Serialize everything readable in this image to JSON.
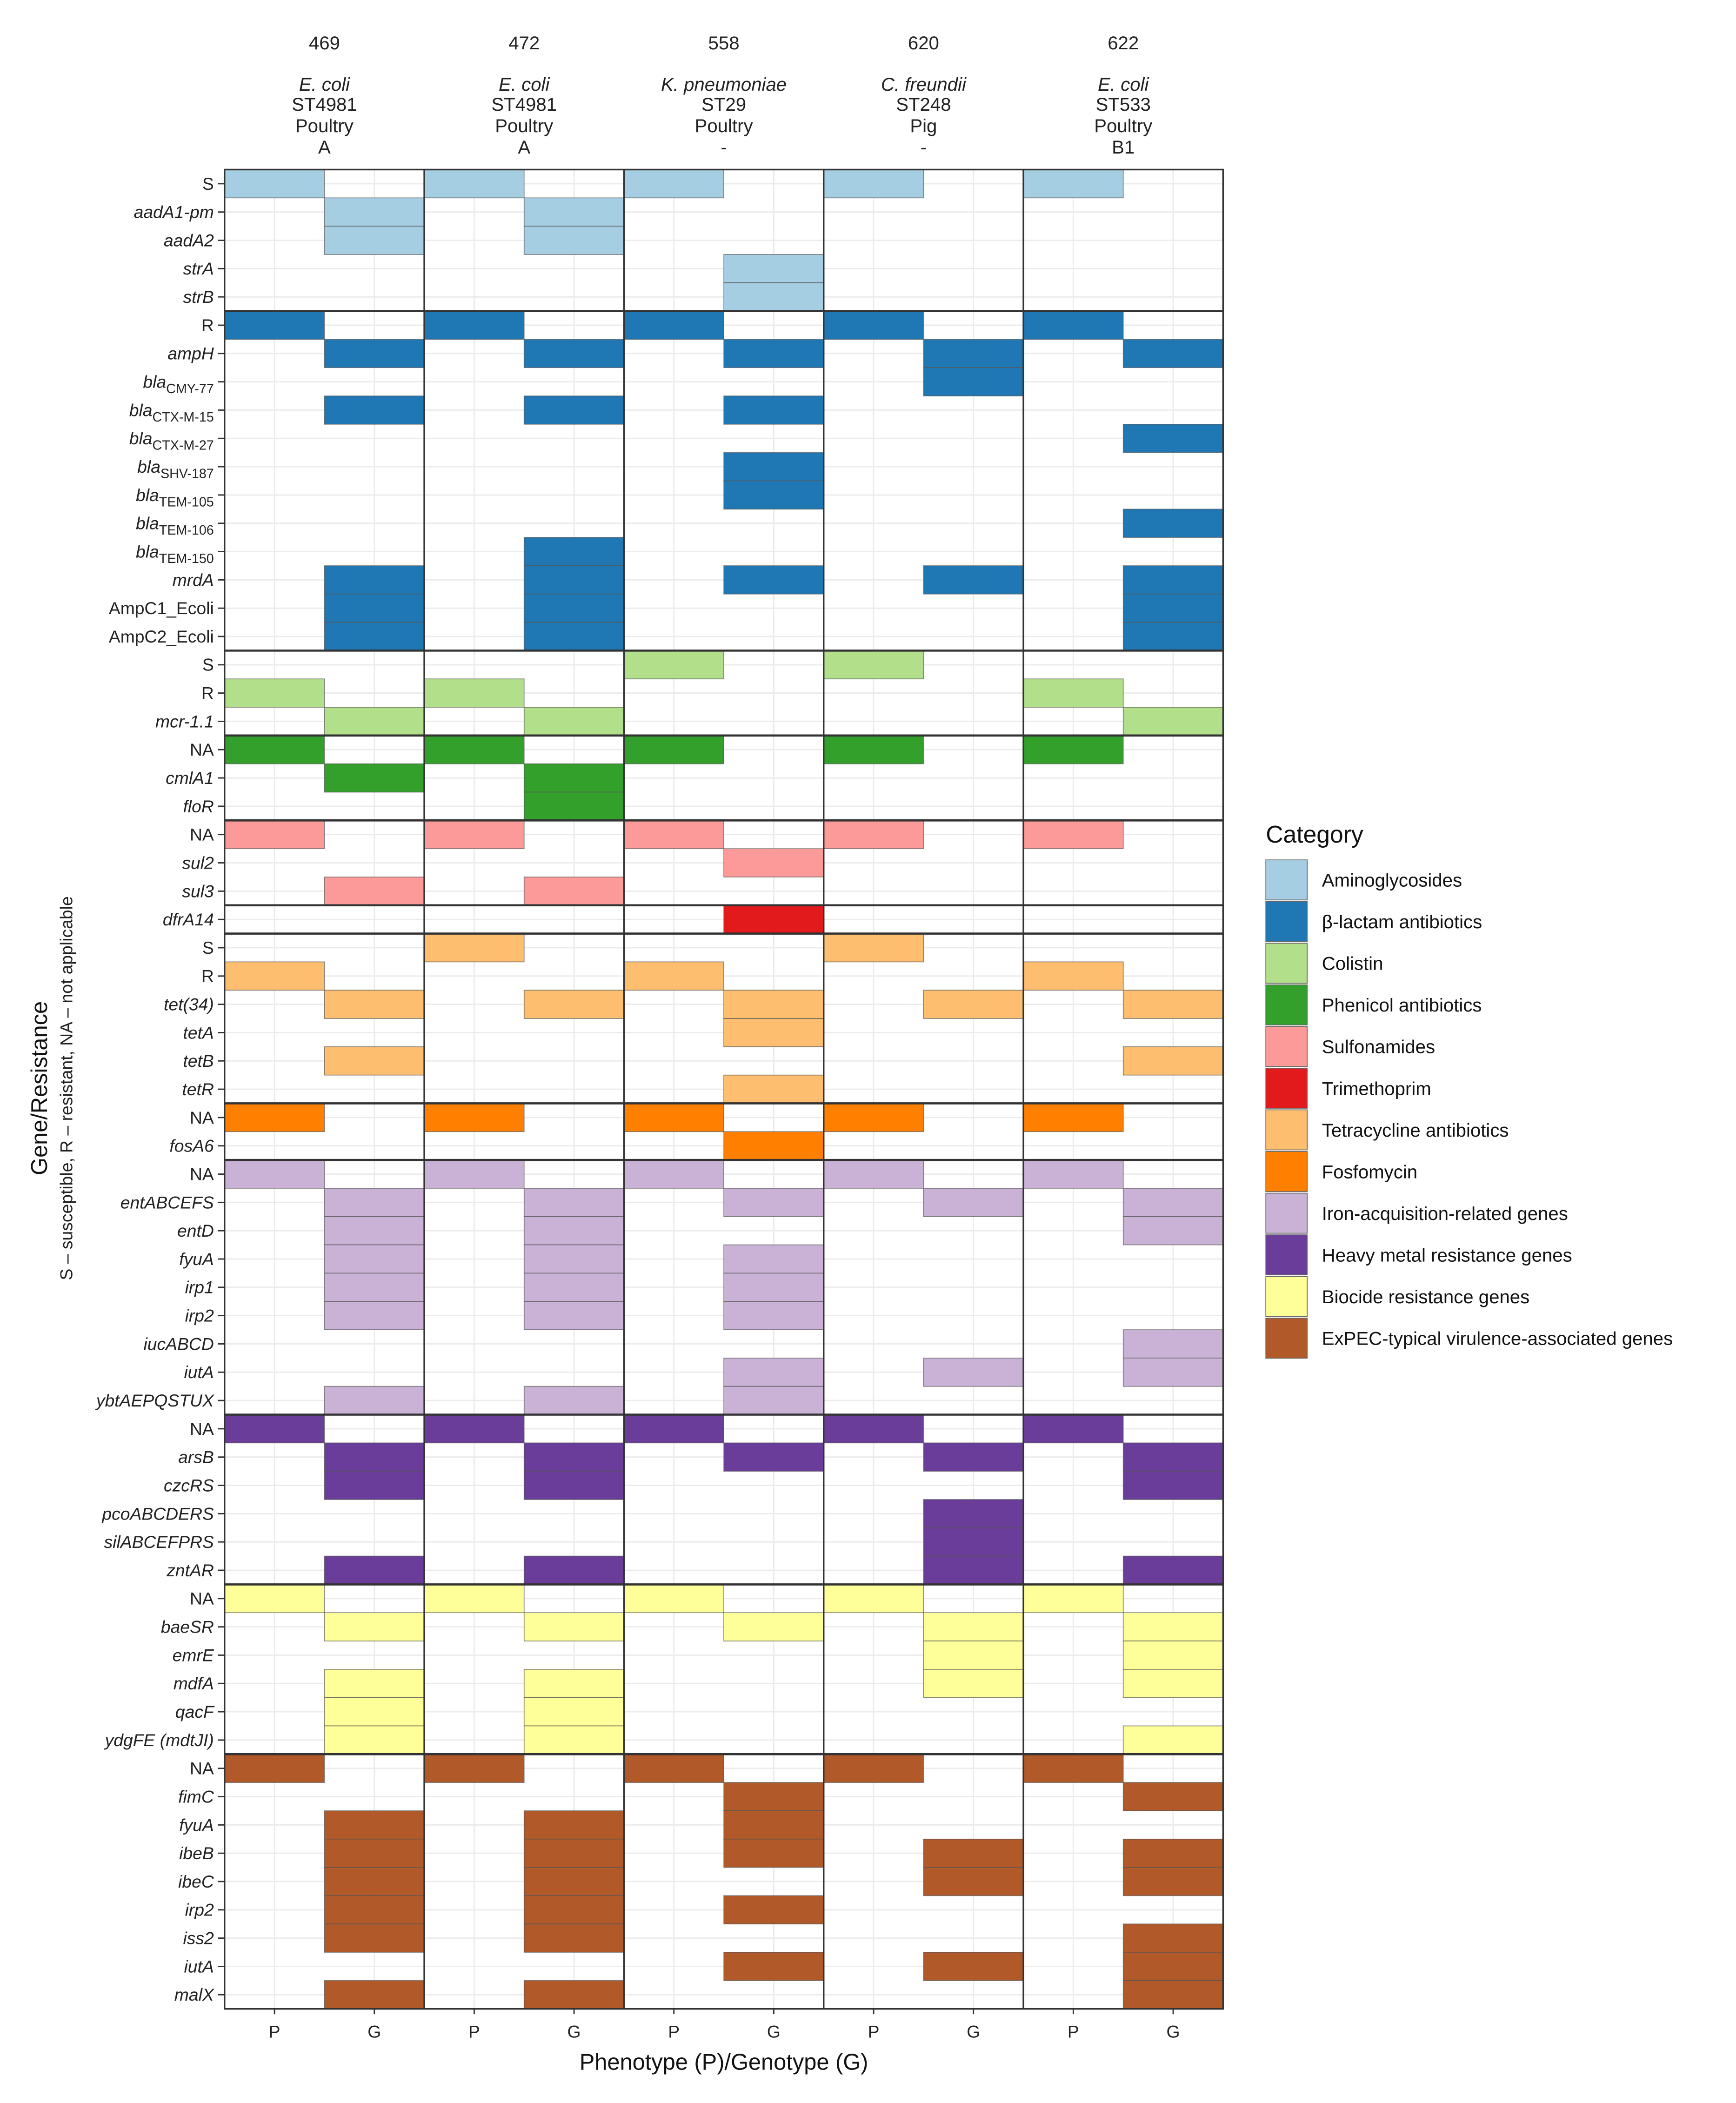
{
  "chart_data": {
    "type": "heatmap",
    "xlabel": "Phenotype (P)/Genotype (G)",
    "ylabel": "Gene/Resistance",
    "ylabel_sub": "S – susceptible, R – resistant, NA – not applicable",
    "x_ticks": [
      "P",
      "G"
    ],
    "legend": {
      "title": "Category",
      "position": "right"
    },
    "isolates": [
      {
        "id": "469",
        "species": "E. coli",
        "st": "ST4981",
        "source": "Poultry",
        "phylogroup": "A"
      },
      {
        "id": "472",
        "species": "E. coli",
        "st": "ST4981",
        "source": "Poultry",
        "phylogroup": "A"
      },
      {
        "id": "558",
        "species": "K. pneumoniae",
        "st": "ST29",
        "source": "Poultry",
        "phylogroup": "-"
      },
      {
        "id": "620",
        "species": "C. freundii",
        "st": "ST248",
        "source": "Pig",
        "phylogroup": "-"
      },
      {
        "id": "622",
        "species": "E. coli",
        "st": "ST533",
        "source": "Poultry",
        "phylogroup": "B1"
      }
    ],
    "groups": [
      {
        "category": "Aminoglycosides",
        "color": "#a6cee3",
        "rows": [
          {
            "label": "S",
            "italic": false,
            "P": [
              "469",
              "472",
              "558",
              "620",
              "622"
            ],
            "G": []
          },
          {
            "label": "aadA1-pm",
            "P": [],
            "G": [
              "469",
              "472"
            ]
          },
          {
            "label": "aadA2",
            "P": [],
            "G": [
              "469",
              "472"
            ]
          },
          {
            "label": "strA",
            "P": [],
            "G": [
              "558"
            ]
          },
          {
            "label": "strB",
            "P": [],
            "G": [
              "558"
            ]
          }
        ]
      },
      {
        "category": "β-lactam antibiotics",
        "color": "#1f78b4",
        "rows": [
          {
            "label": "R",
            "italic": false,
            "P": [
              "469",
              "472",
              "558",
              "620",
              "622"
            ],
            "G": []
          },
          {
            "label": "ampH",
            "P": [],
            "G": [
              "469",
              "472",
              "558",
              "620",
              "622"
            ]
          },
          {
            "label": "bla",
            "sub": "CMY-77",
            "P": [],
            "G": [
              "620"
            ]
          },
          {
            "label": "bla",
            "sub": "CTX-M-15",
            "P": [],
            "G": [
              "469",
              "472",
              "558"
            ]
          },
          {
            "label": "bla",
            "sub": "CTX-M-27",
            "P": [],
            "G": [
              "622"
            ]
          },
          {
            "label": "bla",
            "sub": "SHV-187",
            "P": [],
            "G": [
              "558"
            ]
          },
          {
            "label": "bla",
            "sub": "TEM-105",
            "P": [],
            "G": [
              "558"
            ]
          },
          {
            "label": "bla",
            "sub": "TEM-106",
            "P": [],
            "G": [
              "622"
            ]
          },
          {
            "label": "bla",
            "sub": "TEM-150",
            "P": [],
            "G": [
              "472"
            ]
          },
          {
            "label": "mrdA",
            "P": [],
            "G": [
              "469",
              "472",
              "558",
              "620",
              "622"
            ]
          },
          {
            "label": "AmpC1_Ecoli",
            "italic": false,
            "P": [],
            "G": [
              "469",
              "472",
              "622"
            ]
          },
          {
            "label": "AmpC2_Ecoli",
            "italic": false,
            "P": [],
            "G": [
              "469",
              "472",
              "622"
            ]
          }
        ]
      },
      {
        "category": "Colistin",
        "color": "#b2df8a",
        "rows": [
          {
            "label": "S",
            "italic": false,
            "P": [
              "558",
              "620"
            ],
            "G": []
          },
          {
            "label": "R",
            "italic": false,
            "P": [
              "469",
              "472",
              "622"
            ],
            "G": []
          },
          {
            "label": "mcr-1.1",
            "P": [],
            "G": [
              "469",
              "472",
              "622"
            ]
          }
        ]
      },
      {
        "category": "Phenicol antibiotics",
        "color": "#33a02c",
        "rows": [
          {
            "label": "NA",
            "italic": false,
            "P": [
              "469",
              "472",
              "558",
              "620",
              "622"
            ],
            "G": []
          },
          {
            "label": "cmlA1",
            "P": [],
            "G": [
              "469",
              "472"
            ]
          },
          {
            "label": "floR",
            "P": [],
            "G": [
              "472"
            ]
          }
        ]
      },
      {
        "category": "Sulfonamides",
        "color": "#fb9a99",
        "rows": [
          {
            "label": "NA",
            "italic": false,
            "P": [
              "469",
              "472",
              "558",
              "620",
              "622"
            ],
            "G": []
          },
          {
            "label": "sul2",
            "P": [],
            "G": [
              "558"
            ]
          },
          {
            "label": "sul3",
            "P": [],
            "G": [
              "469",
              "472"
            ]
          }
        ]
      },
      {
        "category": "Trimethoprim",
        "color": "#e31a1c",
        "rows": [
          {
            "label": "dfrA14",
            "P": [],
            "G": [
              "558"
            ]
          }
        ]
      },
      {
        "category": "Tetracycline antibiotics",
        "color": "#fdbf6f",
        "rows": [
          {
            "label": "S",
            "italic": false,
            "P": [
              "472",
              "620"
            ],
            "G": []
          },
          {
            "label": "R",
            "italic": false,
            "P": [
              "469",
              "558",
              "622"
            ],
            "G": []
          },
          {
            "label": "tet(34)",
            "P": [],
            "G": [
              "469",
              "472",
              "558",
              "620",
              "622"
            ]
          },
          {
            "label": "tetA",
            "P": [],
            "G": [
              "558"
            ]
          },
          {
            "label": "tetB",
            "P": [],
            "G": [
              "469",
              "622"
            ]
          },
          {
            "label": "tetR",
            "P": [],
            "G": [
              "558"
            ]
          }
        ]
      },
      {
        "category": "Fosfomycin",
        "color": "#ff7f00",
        "rows": [
          {
            "label": "NA",
            "italic": false,
            "P": [
              "469",
              "472",
              "558",
              "620",
              "622"
            ],
            "G": []
          },
          {
            "label": "fosA6",
            "P": [],
            "G": [
              "558"
            ]
          }
        ]
      },
      {
        "category": "Iron-acquisition-related genes",
        "color": "#cab2d6",
        "rows": [
          {
            "label": "NA",
            "italic": false,
            "P": [
              "469",
              "472",
              "558",
              "620",
              "622"
            ],
            "G": []
          },
          {
            "label": "entABCEFS",
            "P": [],
            "G": [
              "469",
              "472",
              "558",
              "620",
              "622"
            ]
          },
          {
            "label": "entD",
            "P": [],
            "G": [
              "469",
              "472",
              "622"
            ]
          },
          {
            "label": "fyuA",
            "P": [],
            "G": [
              "469",
              "472",
              "558"
            ]
          },
          {
            "label": "irp1",
            "P": [],
            "G": [
              "469",
              "472",
              "558"
            ]
          },
          {
            "label": "irp2",
            "P": [],
            "G": [
              "469",
              "472",
              "558"
            ]
          },
          {
            "label": "iucABCD",
            "P": [],
            "G": [
              "622"
            ]
          },
          {
            "label": "iutA",
            "P": [],
            "G": [
              "558",
              "620",
              "622"
            ]
          },
          {
            "label": "ybtAEPQSTUX",
            "P": [],
            "G": [
              "469",
              "472",
              "558"
            ]
          }
        ]
      },
      {
        "category": "Heavy metal resistance genes",
        "color": "#6a3d9a",
        "rows": [
          {
            "label": "NA",
            "italic": false,
            "P": [
              "469",
              "472",
              "558",
              "620",
              "622"
            ],
            "G": []
          },
          {
            "label": "arsB",
            "P": [],
            "G": [
              "469",
              "472",
              "558",
              "620",
              "622"
            ]
          },
          {
            "label": "czcRS",
            "P": [],
            "G": [
              "469",
              "472",
              "622"
            ]
          },
          {
            "label": "pcoABCDERS",
            "P": [],
            "G": [
              "620"
            ]
          },
          {
            "label": "silABCEFPRS",
            "P": [],
            "G": [
              "620"
            ]
          },
          {
            "label": "zntAR",
            "P": [],
            "G": [
              "469",
              "472",
              "620",
              "622"
            ]
          }
        ]
      },
      {
        "category": "Biocide resistance genes",
        "color": "#ffff99",
        "rows": [
          {
            "label": "NA",
            "italic": false,
            "P": [
              "469",
              "472",
              "558",
              "620",
              "622"
            ],
            "G": []
          },
          {
            "label": "baeSR",
            "P": [],
            "G": [
              "469",
              "472",
              "558",
              "620",
              "622"
            ]
          },
          {
            "label": "emrE",
            "P": [],
            "G": [
              "620",
              "622"
            ]
          },
          {
            "label": "mdfA",
            "P": [],
            "G": [
              "469",
              "472",
              "620",
              "622"
            ]
          },
          {
            "label": "qacF",
            "P": [],
            "G": [
              "469",
              "472"
            ]
          },
          {
            "label": "ydgFE (mdtJI)",
            "P": [],
            "G": [
              "469",
              "472",
              "622"
            ]
          }
        ]
      },
      {
        "category": "ExPEC-typical virulence-associated genes",
        "color": "#b15928",
        "rows": [
          {
            "label": "NA",
            "italic": false,
            "P": [
              "469",
              "472",
              "558",
              "620",
              "622"
            ],
            "G": []
          },
          {
            "label": "fimC",
            "P": [],
            "G": [
              "558",
              "622"
            ]
          },
          {
            "label": "fyuA",
            "P": [],
            "G": [
              "469",
              "472",
              "558"
            ]
          },
          {
            "label": "ibeB",
            "P": [],
            "G": [
              "469",
              "472",
              "558",
              "620",
              "622"
            ]
          },
          {
            "label": "ibeC",
            "P": [],
            "G": [
              "469",
              "472",
              "620",
              "622"
            ]
          },
          {
            "label": "irp2",
            "P": [],
            "G": [
              "469",
              "472",
              "558"
            ]
          },
          {
            "label": "iss2",
            "P": [],
            "G": [
              "469",
              "472",
              "622"
            ]
          },
          {
            "label": "iutA",
            "P": [],
            "G": [
              "558",
              "620",
              "622"
            ]
          },
          {
            "label": "malX",
            "P": [],
            "G": [
              "469",
              "472",
              "622"
            ]
          }
        ]
      }
    ]
  }
}
